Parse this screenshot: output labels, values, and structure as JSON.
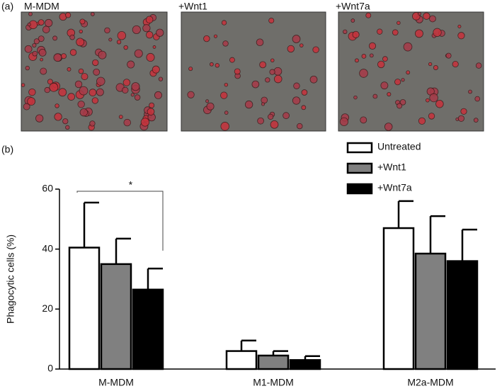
{
  "panel_a": {
    "label": "(a)",
    "images": [
      "M-MDM",
      "+Wnt1",
      "+Wnt7a"
    ]
  },
  "chart_data": {
    "type": "bar",
    "panel_label": "(b)",
    "y_label": "Phagocytic cells (%)",
    "categories": [
      "M-MDM",
      "M1-MDM",
      "M2a-MDM"
    ],
    "series": [
      {
        "name": "Untreated",
        "color": "#ffffff",
        "values": [
          40.5,
          6,
          47
        ],
        "errors": [
          15,
          3.5,
          9
        ]
      },
      {
        "name": "+Wnt1",
        "color": "#808080",
        "values": [
          35,
          4.5,
          38.5
        ],
        "errors": [
          8.5,
          1.5,
          12.5
        ]
      },
      {
        "name": "+Wnt7a",
        "color": "#000000",
        "values": [
          26.5,
          3,
          36
        ],
        "errors": [
          7,
          1.3,
          10.5
        ]
      }
    ],
    "ylim": [
      0,
      60
    ],
    "yticks": [
      0,
      20,
      40,
      60
    ],
    "legend": "upper right",
    "annotations": [
      "*"
    ]
  }
}
